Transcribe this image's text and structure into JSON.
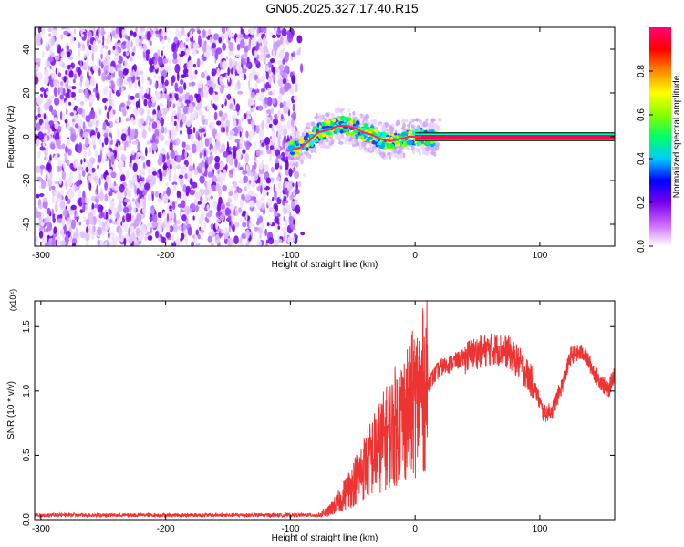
{
  "title": "GN05.2025.327.17.40.R15",
  "chart_data": [
    {
      "type": "heatmap",
      "title": "GN05.2025.327.17.40.R15",
      "xlabel": "Height of straight line (km)",
      "ylabel": "Frequency (Hz)",
      "xlim": [
        -305,
        160
      ],
      "ylim": [
        -50,
        50
      ],
      "x_ticks": [
        "-300",
        "-200",
        "-100",
        "0",
        "100"
      ],
      "y_ticks": [
        "-40",
        "-20",
        "0",
        "20",
        "40"
      ],
      "colorbar": {
        "label": "Normalized spectral amplitude",
        "range": [
          0,
          1
        ],
        "ticks": [
          "0.0",
          "0.2",
          "0.4",
          "0.6",
          "0.8"
        ],
        "colors": [
          "#ffffff",
          "#cc66ff",
          "#7700ee",
          "#0000ff",
          "#00ccff",
          "#00ff66",
          "#88ff00",
          "#ffff00",
          "#ff8800",
          "#ff0000",
          "#ff0077"
        ]
      },
      "regions": [
        {
          "description": "noise",
          "x_range": [
            -305,
            -95
          ],
          "f_range": [
            -50,
            50
          ],
          "amplitude": [
            0.0,
            0.15
          ]
        },
        {
          "description": "signal",
          "x_range": [
            -100,
            160
          ],
          "center_freq": 0
        }
      ],
      "signal_trace": [
        {
          "x": -100,
          "f": -6
        },
        {
          "x": -92,
          "f": -5
        },
        {
          "x": -85,
          "f": -2
        },
        {
          "x": -78,
          "f": 2
        },
        {
          "x": -70,
          "f": 3
        },
        {
          "x": -62,
          "f": 5
        },
        {
          "x": -55,
          "f": 5
        },
        {
          "x": -48,
          "f": 4
        },
        {
          "x": -42,
          "f": 2
        },
        {
          "x": -35,
          "f": 1
        },
        {
          "x": -28,
          "f": -1
        },
        {
          "x": -20,
          "f": -2
        },
        {
          "x": -12,
          "f": -1
        },
        {
          "x": -5,
          "f": 0
        },
        {
          "x": 5,
          "f": 0
        },
        {
          "x": 20,
          "f": 0
        },
        {
          "x": 160,
          "f": 0
        }
      ]
    },
    {
      "type": "line",
      "xlabel": "Height of straight line (km)",
      "ylabel": "SNR (10 * v/v)",
      "y_multiplier": "(x10⁴)",
      "xlim": [
        -305,
        160
      ],
      "ylim": [
        0,
        1.7
      ],
      "x_ticks": [
        "-300",
        "-200",
        "-100",
        "0",
        "100"
      ],
      "y_ticks": [
        "0.0",
        "0.5",
        "1.0",
        "1.5"
      ],
      "line_color": "#ee3333",
      "envelope": [
        {
          "x": -305,
          "y": 0.03
        },
        {
          "x": -150,
          "y": 0.03
        },
        {
          "x": -80,
          "y": 0.04
        },
        {
          "x": -70,
          "y": 0.06
        },
        {
          "x": -60,
          "y": 0.15
        },
        {
          "x": -50,
          "y": 0.28
        },
        {
          "x": -40,
          "y": 0.42
        },
        {
          "x": -30,
          "y": 0.55
        },
        {
          "x": -20,
          "y": 0.68
        },
        {
          "x": -10,
          "y": 0.8
        },
        {
          "x": 0,
          "y": 0.92
        },
        {
          "x": 10,
          "y": 1.05
        },
        {
          "x": 20,
          "y": 1.18
        },
        {
          "x": 35,
          "y": 1.24
        },
        {
          "x": 50,
          "y": 1.3
        },
        {
          "x": 65,
          "y": 1.33
        },
        {
          "x": 75,
          "y": 1.3
        },
        {
          "x": 85,
          "y": 1.2
        },
        {
          "x": 95,
          "y": 1.05
        },
        {
          "x": 103,
          "y": 0.82
        },
        {
          "x": 110,
          "y": 0.85
        },
        {
          "x": 118,
          "y": 1.05
        },
        {
          "x": 125,
          "y": 1.28
        },
        {
          "x": 135,
          "y": 1.3
        },
        {
          "x": 145,
          "y": 1.12
        },
        {
          "x": 155,
          "y": 1.0
        },
        {
          "x": 160,
          "y": 1.15
        }
      ]
    }
  ]
}
